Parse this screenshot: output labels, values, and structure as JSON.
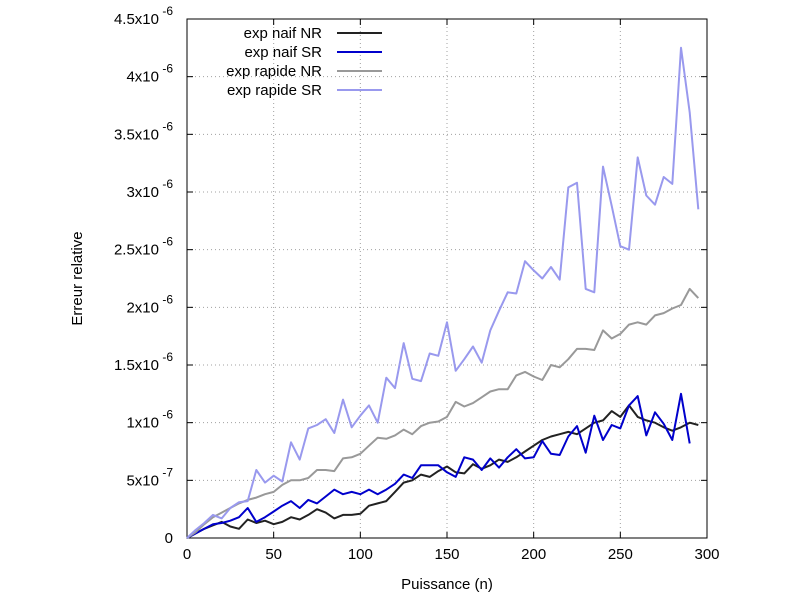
{
  "chart_data": {
    "type": "line",
    "xlabel": "Puissance (n)",
    "ylabel": "Erreur relative",
    "xlim": [
      0,
      300
    ],
    "ylim": [
      0,
      4.5e-06
    ],
    "grid": true,
    "legend_position": "top-left",
    "x_ticks": [
      0,
      50,
      100,
      150,
      200,
      250,
      300
    ],
    "x_tick_labels": [
      "0",
      "50",
      "100",
      "150",
      "200",
      "250",
      "300"
    ],
    "y_ticks": [
      0,
      5e-07,
      1e-06,
      1.5e-06,
      2e-06,
      2.5e-06,
      3e-06,
      3.5e-06,
      4e-06,
      4.5e-06
    ],
    "y_tick_labels": [
      {
        "mant": "0",
        "exp": ""
      },
      {
        "mant": "5x10",
        "exp": "-7"
      },
      {
        "mant": "1x10",
        "exp": "-6"
      },
      {
        "mant": "1.5x10",
        "exp": "-6"
      },
      {
        "mant": "2x10",
        "exp": "-6"
      },
      {
        "mant": "2.5x10",
        "exp": "-6"
      },
      {
        "mant": "3x10",
        "exp": "-6"
      },
      {
        "mant": "3.5x10",
        "exp": "-6"
      },
      {
        "mant": "4x10",
        "exp": "-6"
      },
      {
        "mant": "4.5x10",
        "exp": "-6"
      }
    ],
    "x": [
      0,
      5,
      10,
      15,
      20,
      25,
      30,
      35,
      40,
      45,
      50,
      55,
      60,
      65,
      70,
      75,
      80,
      85,
      90,
      95,
      100,
      105,
      110,
      115,
      120,
      125,
      130,
      135,
      140,
      145,
      150,
      155,
      160,
      165,
      170,
      175,
      180,
      185,
      190,
      195,
      200,
      205,
      210,
      215,
      220,
      225,
      230,
      235,
      240,
      245,
      250,
      255,
      260,
      265,
      270,
      275,
      280,
      285,
      290,
      295
    ],
    "series": [
      {
        "name": "exp naif NR",
        "color": "#222222",
        "values": [
          0,
          4e-08,
          8e-08,
          1.1e-07,
          1.4e-07,
          1e-07,
          8e-08,
          1.6e-07,
          1.3e-07,
          1.5e-07,
          1.2e-07,
          1.4e-07,
          1.8e-07,
          1.6e-07,
          2e-07,
          2.5e-07,
          2.2e-07,
          1.7e-07,
          2e-07,
          2e-07,
          2.1e-07,
          2.8e-07,
          3e-07,
          3.2e-07,
          4e-07,
          4.8e-07,
          5e-07,
          5.5e-07,
          5.3e-07,
          5.8e-07,
          6.2e-07,
          5.7e-07,
          5.6e-07,
          6.4e-07,
          6e-07,
          6.3e-07,
          6.8e-07,
          6.6e-07,
          7e-07,
          7.5e-07,
          8e-07,
          8.5e-07,
          8.8e-07,
          9e-07,
          9.2e-07,
          9e-07,
          9.5e-07,
          1e-06,
          1.02e-06,
          1.1e-06,
          1.05e-06,
          1.15e-06,
          1.05e-06,
          1.02e-06,
          1e-06,
          9.6e-07,
          9.3e-07,
          9.6e-07,
          1e-06,
          9.8e-07
        ]
      },
      {
        "name": "exp naif SR",
        "color": "#0000cc",
        "values": [
          0,
          4e-08,
          8e-08,
          1.2e-07,
          1.3e-07,
          1.5e-07,
          1.8e-07,
          2.6e-07,
          1.4e-07,
          1.8e-07,
          2.3e-07,
          2.8e-07,
          3.2e-07,
          2.6e-07,
          3.3e-07,
          3e-07,
          3.6e-07,
          4.2e-07,
          3.8e-07,
          4e-07,
          3.8e-07,
          4.2e-07,
          3.8e-07,
          4.2e-07,
          4.7e-07,
          5.5e-07,
          5.2e-07,
          6.3e-07,
          6.3e-07,
          6.3e-07,
          5.7e-07,
          5.3e-07,
          7e-07,
          6.8e-07,
          5.9e-07,
          6.9e-07,
          6.1e-07,
          7e-07,
          7.7e-07,
          6.9e-07,
          7e-07,
          8.4e-07,
          7.3e-07,
          7.2e-07,
          8.8e-07,
          9.7e-07,
          7.4e-07,
          1.06e-06,
          8.5e-07,
          9.8e-07,
          9.5e-07,
          1.15e-06,
          1.23e-06,
          8.9e-07,
          1.09e-06,
          9.9e-07,
          8.5e-07,
          1.25e-06,
          8.2e-07,
          null
        ]
      },
      {
        "name": "exp rapide NR",
        "color": "#999999",
        "values": [
          0,
          5e-08,
          1.2e-07,
          1.8e-07,
          2.2e-07,
          2.6e-07,
          3e-07,
          3.3e-07,
          3.5e-07,
          3.8e-07,
          4e-07,
          4.6e-07,
          5e-07,
          5e-07,
          5.2e-07,
          5.9e-07,
          5.9e-07,
          5.8e-07,
          6.9e-07,
          7e-07,
          7.3e-07,
          8e-07,
          8.7e-07,
          8.6e-07,
          8.9e-07,
          9.4e-07,
          9e-07,
          9.7e-07,
          1e-06,
          1.01e-06,
          1.05e-06,
          1.18e-06,
          1.14e-06,
          1.17e-06,
          1.22e-06,
          1.27e-06,
          1.29e-06,
          1.29e-06,
          1.41e-06,
          1.44e-06,
          1.4e-06,
          1.37e-06,
          1.5e-06,
          1.48e-06,
          1.55e-06,
          1.64e-06,
          1.64e-06,
          1.63e-06,
          1.8e-06,
          1.73e-06,
          1.77e-06,
          1.85e-06,
          1.87e-06,
          1.85e-06,
          1.93e-06,
          1.95e-06,
          1.99e-06,
          2.02e-06,
          2.16e-06,
          2.08e-06
        ]
      },
      {
        "name": "exp rapide SR",
        "color": "#9999ee",
        "values": [
          0,
          7e-08,
          1.3e-07,
          2e-07,
          1.7e-07,
          2.6e-07,
          3.1e-07,
          3.2e-07,
          5.9e-07,
          4.8e-07,
          5.4e-07,
          4.9e-07,
          8.3e-07,
          6.8e-07,
          9.5e-07,
          9.8e-07,
          1.03e-06,
          9.1e-07,
          1.2e-06,
          9.6e-07,
          1.06e-06,
          1.15e-06,
          1e-06,
          1.39e-06,
          1.3e-06,
          1.69e-06,
          1.38e-06,
          1.36e-06,
          1.6e-06,
          1.58e-06,
          1.87e-06,
          1.45e-06,
          1.55e-06,
          1.66e-06,
          1.52e-06,
          1.8e-06,
          1.97e-06,
          2.13e-06,
          2.12e-06,
          2.4e-06,
          2.32e-06,
          2.25e-06,
          2.35e-06,
          2.24e-06,
          3.04e-06,
          3.08e-06,
          2.16e-06,
          2.13e-06,
          3.22e-06,
          2.88e-06,
          2.53e-06,
          2.5e-06,
          3.3e-06,
          2.97e-06,
          2.89e-06,
          3.13e-06,
          3.07e-06,
          4.25e-06,
          3.69e-06,
          2.85e-06
        ]
      }
    ]
  }
}
